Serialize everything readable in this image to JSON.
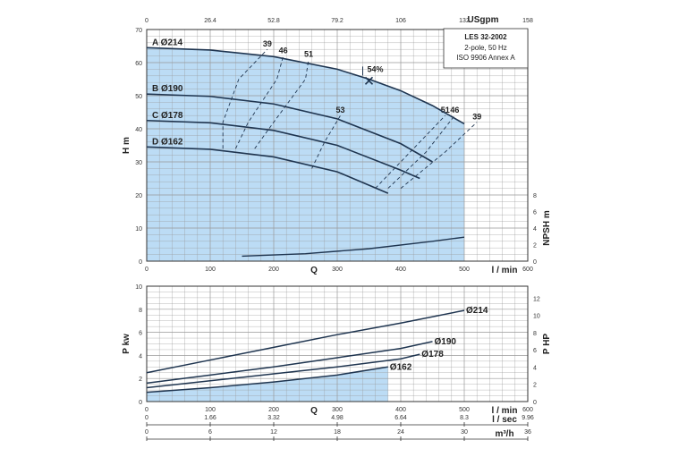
{
  "info_box": {
    "title": "LES 32-2002",
    "line1": "2-pole, 50 Hz",
    "line2": "ISO 9906 Annex A"
  },
  "chart_data": [
    {
      "id": "head",
      "type": "line",
      "xlim": [
        0,
        600
      ],
      "ylim": [
        0,
        70
      ],
      "xticks": [
        "0",
        "100",
        "200",
        "300",
        "400",
        "500",
        "600"
      ],
      "yticks": [
        "0",
        "10",
        "20",
        "30",
        "40",
        "50",
        "60",
        "70"
      ],
      "top_ticks": [
        "0",
        "26.4",
        "52.8",
        "79.2",
        "106",
        "132",
        "158"
      ],
      "top_unit": "USgpm",
      "xlabel": "Q",
      "xunit": "l / min",
      "ylabel": "H  m",
      "right_label": "NPSH  m",
      "right_ticks": [
        "0",
        "2",
        "4",
        "6",
        "8"
      ],
      "right_ylim": [
        0,
        8
      ],
      "right_scale_max_h": 20,
      "grid": true,
      "series": [
        {
          "name": "A Ø214",
          "x": [
            0,
            100,
            200,
            300,
            350,
            400,
            450,
            500
          ],
          "y": [
            64.5,
            63.8,
            61.8,
            58.0,
            55.0,
            51.5,
            47.0,
            41.5
          ]
        },
        {
          "name": "B Ø190",
          "x": [
            0,
            100,
            200,
            300,
            400,
            450
          ],
          "y": [
            50.5,
            49.8,
            47.5,
            43.0,
            35.5,
            30.0
          ]
        },
        {
          "name": "C Ø178",
          "x": [
            0,
            100,
            200,
            300,
            400,
            430
          ],
          "y": [
            42.5,
            41.8,
            39.5,
            35.0,
            27.5,
            25.0
          ]
        },
        {
          "name": "D Ø162",
          "x": [
            0,
            100,
            200,
            300,
            380
          ],
          "y": [
            34.5,
            33.8,
            31.5,
            27.0,
            20.5
          ]
        }
      ],
      "npsh": {
        "x": [
          150,
          250,
          350,
          450,
          500
        ],
        "y": [
          0.6,
          0.9,
          1.5,
          2.4,
          2.9
        ]
      },
      "operating_point": {
        "x": 350,
        "y": 54.5,
        "label": "54%"
      },
      "efficiency_curves": [
        {
          "label": "39",
          "x": [
            120,
            120,
            145,
            190
          ],
          "y": [
            34,
            42,
            55,
            64
          ]
        },
        {
          "label": "46",
          "x": [
            140,
            160,
            205,
            215
          ],
          "y": [
            34,
            42,
            55,
            62
          ]
        },
        {
          "label": "51",
          "x": [
            170,
            200,
            250,
            255
          ],
          "y": [
            34,
            42,
            55,
            61
          ]
        },
        {
          "label": "53",
          "x": [
            260,
            280,
            305
          ],
          "y": [
            28,
            36,
            44
          ]
        },
        {
          "label": "51",
          "x": [
            360,
            410,
            470
          ],
          "y": [
            22,
            32,
            44
          ]
        },
        {
          "label": "46",
          "x": [
            380,
            440,
            485
          ],
          "y": [
            22,
            33,
            44
          ]
        },
        {
          "label": "39",
          "x": [
            400,
            470,
            520
          ],
          "y": [
            22,
            33,
            42
          ]
        }
      ],
      "annotations": [
        "39",
        "46",
        "51",
        "54%",
        "53",
        "51",
        "46",
        "39"
      ]
    },
    {
      "id": "power",
      "type": "line",
      "xlim": [
        0,
        600
      ],
      "ylim": [
        0,
        10
      ],
      "xticks": [
        "0",
        "100",
        "200",
        "300",
        "400",
        "500",
        "600"
      ],
      "yticks": [
        "0",
        "2",
        "4",
        "6",
        "8",
        "10"
      ],
      "right_ticks": [
        "0",
        "2",
        "4",
        "6",
        "8",
        "10",
        "12"
      ],
      "right_ylim": [
        0,
        13.4
      ],
      "xlabel": "Q",
      "xunit": "l / min",
      "ylabel": "P  kw",
      "right_label": "P  HP",
      "grid": true,
      "series": [
        {
          "name": "Ø214",
          "x": [
            0,
            100,
            200,
            300,
            400,
            500
          ],
          "y": [
            2.5,
            3.6,
            4.7,
            5.8,
            6.8,
            7.9
          ]
        },
        {
          "name": "Ø190",
          "x": [
            0,
            100,
            200,
            300,
            400,
            450
          ],
          "y": [
            1.6,
            2.3,
            3.0,
            3.8,
            4.6,
            5.2
          ]
        },
        {
          "name": "Ø178",
          "x": [
            0,
            100,
            200,
            300,
            400,
            430
          ],
          "y": [
            1.2,
            1.8,
            2.4,
            3.0,
            3.7,
            4.1
          ]
        },
        {
          "name": "Ø162",
          "x": [
            0,
            100,
            200,
            300,
            380
          ],
          "y": [
            0.8,
            1.2,
            1.7,
            2.3,
            3.0
          ]
        }
      ],
      "bottom_axes": [
        {
          "unit": "l / sec",
          "ticks": [
            "0",
            "1.66",
            "3.32",
            "4.98",
            "6.64",
            "8.3",
            "9.96"
          ]
        },
        {
          "unit": "m³/h",
          "ticks": [
            "0",
            "6",
            "12",
            "18",
            "24",
            "30",
            "36"
          ]
        }
      ]
    }
  ],
  "colors": {
    "fill": "#bcdcf5",
    "curve": "#1f3550",
    "grid": "#999999",
    "axis": "#333333"
  }
}
